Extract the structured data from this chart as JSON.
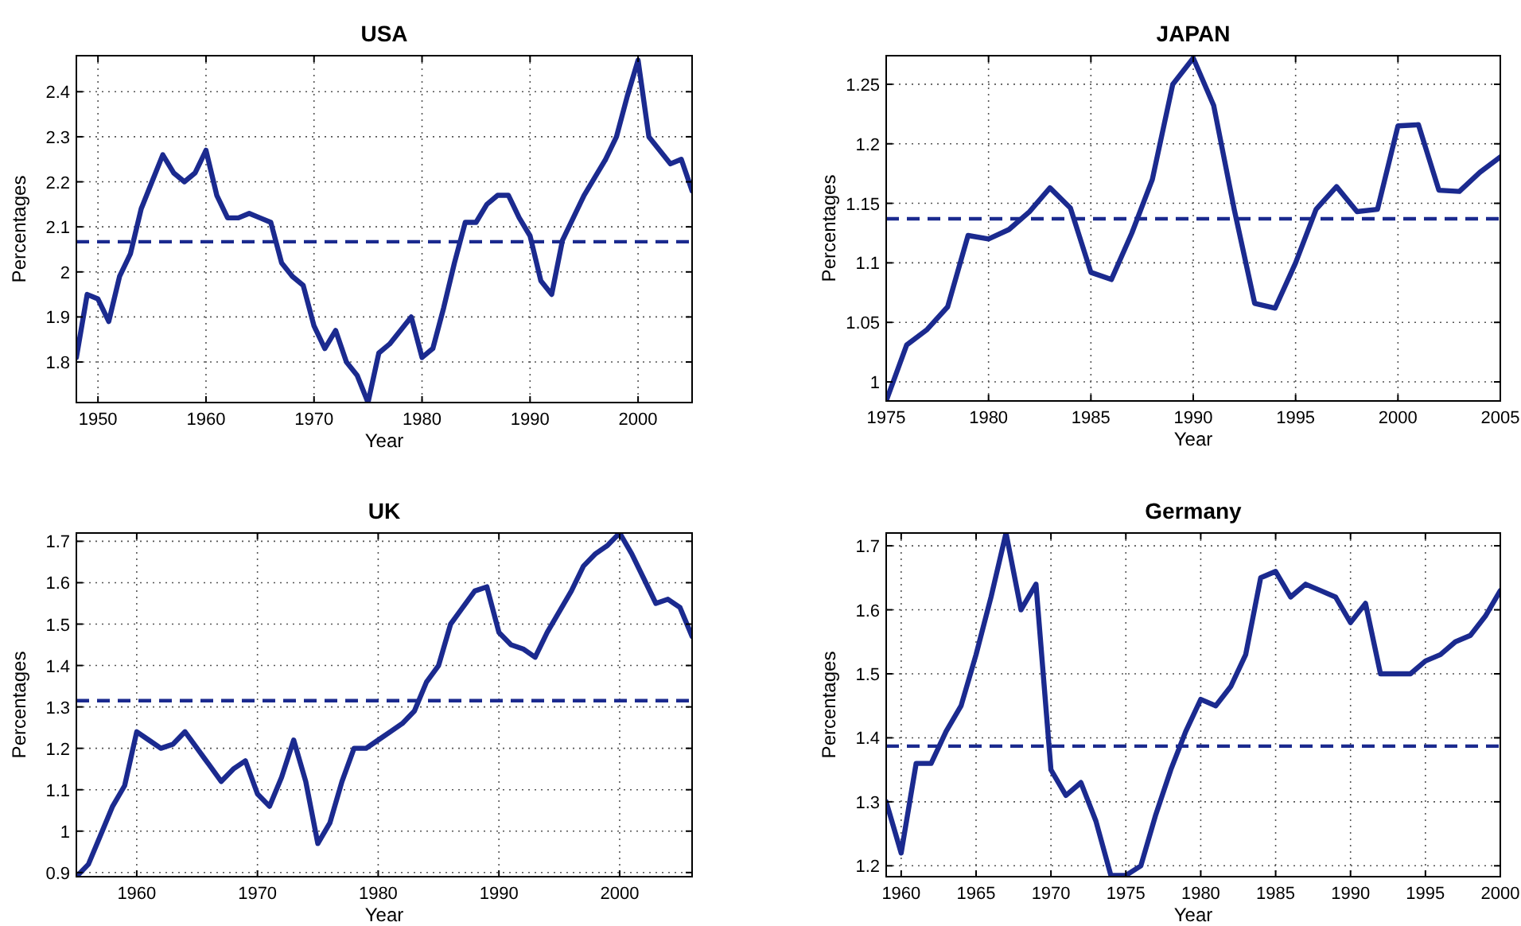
{
  "chart_data": [
    {
      "type": "line",
      "title": "USA",
      "xlabel": "Year",
      "ylabel": "Percentages",
      "grid": true,
      "xlim": [
        1948,
        2005
      ],
      "ylim": [
        1.71,
        2.48
      ],
      "xticks": [
        1950,
        1960,
        1970,
        1980,
        1990,
        2000
      ],
      "yticks": [
        1.8,
        1.9,
        2,
        2.1,
        2.2,
        2.3,
        2.4
      ],
      "x": [
        1948,
        1949,
        1950,
        1951,
        1952,
        1953,
        1954,
        1955,
        1956,
        1957,
        1958,
        1959,
        1960,
        1961,
        1962,
        1963,
        1964,
        1965,
        1966,
        1967,
        1968,
        1969,
        1970,
        1971,
        1972,
        1973,
        1974,
        1975,
        1976,
        1977,
        1978,
        1979,
        1980,
        1981,
        1982,
        1983,
        1984,
        1985,
        1986,
        1987,
        1988,
        1989,
        1990,
        1991,
        1992,
        1993,
        1994,
        1995,
        1996,
        1997,
        1998,
        1999,
        2000,
        2001,
        2002,
        2003,
        2004,
        2005
      ],
      "series": [
        {
          "color": "#1b2a8f",
          "values": [
            1.81,
            1.95,
            1.94,
            1.89,
            1.99,
            2.04,
            2.14,
            2.2,
            2.26,
            2.22,
            2.2,
            2.22,
            2.27,
            2.17,
            2.12,
            2.12,
            2.13,
            2.12,
            2.11,
            2.02,
            1.99,
            1.97,
            1.88,
            1.83,
            1.87,
            1.8,
            1.77,
            1.71,
            1.82,
            1.84,
            1.87,
            1.9,
            1.81,
            1.83,
            1.92,
            2.02,
            2.11,
            2.11,
            2.15,
            2.17,
            2.17,
            2.12,
            2.08,
            1.98,
            1.95,
            2.07,
            2.12,
            2.17,
            2.21,
            2.25,
            2.3,
            2.39,
            2.47,
            2.3,
            2.27,
            2.24,
            2.25,
            2.18
          ]
        }
      ],
      "ref_lines": [
        {
          "axis": "y",
          "value": 2.067,
          "color": "#1b2a8f",
          "line_style": "dashed"
        }
      ]
    },
    {
      "type": "line",
      "title": "JAPAN",
      "xlabel": "Year",
      "ylabel": "Percentages",
      "grid": true,
      "xlim": [
        1975,
        2005
      ],
      "ylim": [
        0.984,
        1.274
      ],
      "xticks": [
        1975,
        1980,
        1985,
        1990,
        1995,
        2000,
        2005
      ],
      "yticks": [
        1,
        1.05,
        1.1,
        1.15,
        1.2,
        1.25
      ],
      "x": [
        1975,
        1976,
        1977,
        1978,
        1979,
        1980,
        1981,
        1982,
        1983,
        1984,
        1985,
        1986,
        1987,
        1988,
        1989,
        1990,
        1991,
        1992,
        1993,
        1994,
        1995,
        1996,
        1997,
        1998,
        1999,
        2000,
        2001,
        2002,
        2003,
        2004,
        2005
      ],
      "series": [
        {
          "color": "#1b2a8f",
          "values": [
            0.984,
            1.031,
            1.044,
            1.063,
            1.123,
            1.12,
            1.128,
            1.143,
            1.163,
            1.146,
            1.092,
            1.086,
            1.125,
            1.17,
            1.25,
            1.272,
            1.232,
            1.145,
            1.066,
            1.062,
            1.1,
            1.145,
            1.164,
            1.143,
            1.145,
            1.215,
            1.216,
            1.161,
            1.16,
            1.176,
            1.189
          ]
        }
      ],
      "ref_lines": [
        {
          "axis": "y",
          "value": 1.137,
          "color": "#1b2a8f",
          "line_style": "dashed"
        }
      ]
    },
    {
      "type": "line",
      "title": "UK",
      "xlabel": "Year",
      "ylabel": "Percentages",
      "grid": true,
      "xlim": [
        1955,
        2006
      ],
      "ylim": [
        0.89,
        1.72
      ],
      "xticks": [
        1960,
        1970,
        1980,
        1990,
        2000
      ],
      "yticks": [
        0.9,
        1,
        1.1,
        1.2,
        1.3,
        1.4,
        1.5,
        1.6,
        1.7
      ],
      "x": [
        1955,
        1956,
        1957,
        1958,
        1959,
        1960,
        1961,
        1962,
        1963,
        1964,
        1965,
        1966,
        1967,
        1968,
        1969,
        1970,
        1971,
        1972,
        1973,
        1974,
        1975,
        1976,
        1977,
        1978,
        1979,
        1980,
        1981,
        1982,
        1983,
        1984,
        1985,
        1986,
        1987,
        1988,
        1989,
        1990,
        1991,
        1992,
        1993,
        1994,
        1995,
        1996,
        1997,
        1998,
        1999,
        2000,
        2001,
        2002,
        2003,
        2004,
        2005,
        2006
      ],
      "series": [
        {
          "color": "#1b2a8f",
          "values": [
            0.89,
            0.92,
            0.99,
            1.06,
            1.11,
            1.24,
            1.22,
            1.2,
            1.21,
            1.24,
            1.2,
            1.16,
            1.12,
            1.15,
            1.17,
            1.09,
            1.06,
            1.13,
            1.22,
            1.12,
            0.97,
            1.02,
            1.12,
            1.2,
            1.2,
            1.22,
            1.24,
            1.26,
            1.29,
            1.36,
            1.4,
            1.5,
            1.54,
            1.58,
            1.59,
            1.48,
            1.45,
            1.44,
            1.42,
            1.48,
            1.53,
            1.58,
            1.64,
            1.67,
            1.69,
            1.72,
            1.67,
            1.61,
            1.55,
            1.56,
            1.54,
            1.47
          ]
        }
      ],
      "ref_lines": [
        {
          "axis": "y",
          "value": 1.315,
          "color": "#1b2a8f",
          "line_style": "dashed"
        }
      ]
    },
    {
      "type": "line",
      "title": "Germany",
      "xlabel": "Year",
      "ylabel": "Percentages",
      "grid": true,
      "xlim": [
        1959,
        2000
      ],
      "ylim": [
        1.183,
        1.72
      ],
      "xticks": [
        1960,
        1965,
        1970,
        1975,
        1980,
        1985,
        1990,
        1995,
        2000
      ],
      "yticks": [
        1.2,
        1.3,
        1.4,
        1.5,
        1.6,
        1.7
      ],
      "x": [
        1959,
        1960,
        1961,
        1962,
        1963,
        1964,
        1965,
        1966,
        1967,
        1968,
        1969,
        1970,
        1971,
        1972,
        1973,
        1974,
        1975,
        1976,
        1977,
        1978,
        1979,
        1980,
        1981,
        1982,
        1983,
        1984,
        1985,
        1986,
        1987,
        1988,
        1989,
        1990,
        1991,
        1992,
        1993,
        1994,
        1995,
        1996,
        1997,
        1998,
        1999,
        2000
      ],
      "series": [
        {
          "color": "#1b2a8f",
          "values": [
            1.3,
            1.22,
            1.36,
            1.36,
            1.41,
            1.45,
            1.53,
            1.62,
            1.72,
            1.6,
            1.64,
            1.35,
            1.31,
            1.33,
            1.27,
            1.185,
            1.185,
            1.2,
            1.28,
            1.35,
            1.41,
            1.46,
            1.45,
            1.48,
            1.53,
            1.65,
            1.66,
            1.62,
            1.64,
            1.63,
            1.62,
            1.58,
            1.61,
            1.5,
            1.5,
            1.5,
            1.52,
            1.53,
            1.55,
            1.56,
            1.59,
            1.63
          ]
        }
      ],
      "ref_lines": [
        {
          "axis": "y",
          "value": 1.387,
          "color": "#1b2a8f",
          "line_style": "dashed"
        }
      ]
    }
  ]
}
